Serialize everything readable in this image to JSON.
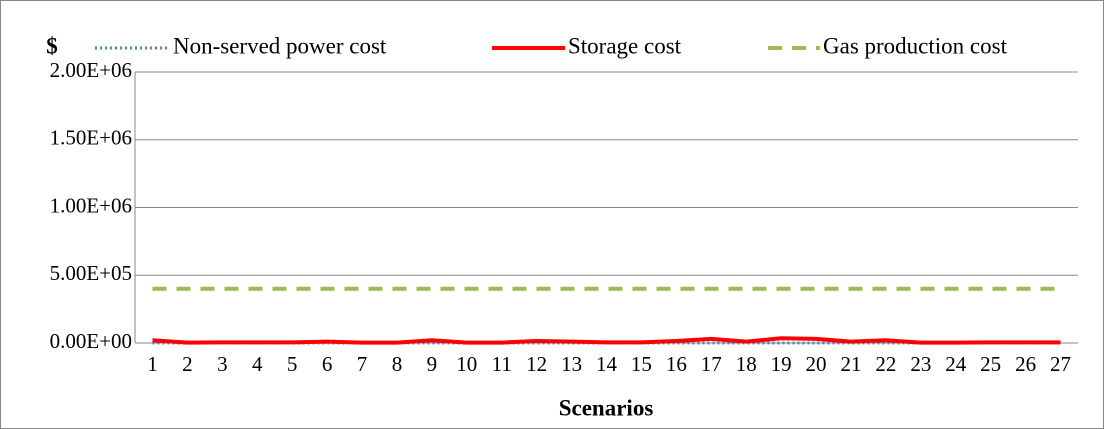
{
  "chart_data": {
    "type": "line",
    "y_label": "$",
    "x_label": "Scenarios",
    "categories": [
      "1",
      "2",
      "3",
      "4",
      "5",
      "6",
      "7",
      "8",
      "9",
      "10",
      "11",
      "12",
      "13",
      "14",
      "15",
      "16",
      "17",
      "18",
      "19",
      "20",
      "21",
      "22",
      "23",
      "24",
      "25",
      "26",
      "27"
    ],
    "series": [
      {
        "name": "Non-served power cost",
        "color": "#4f81bd",
        "style": "dotted",
        "values": [
          0,
          0,
          0,
          0,
          0,
          0,
          0,
          0,
          0,
          0,
          0,
          0,
          0,
          0,
          0,
          0,
          0,
          0,
          0,
          0,
          0,
          0,
          0,
          0,
          0,
          0,
          0
        ]
      },
      {
        "name": "Storage cost",
        "color": "#ff0000",
        "style": "solid",
        "values": [
          20000,
          3000,
          5000,
          5000,
          5000,
          10000,
          3000,
          3000,
          20000,
          3000,
          3000,
          15000,
          10000,
          5000,
          5000,
          15000,
          30000,
          10000,
          35000,
          30000,
          10000,
          20000,
          3000,
          3000,
          5000,
          5000,
          5000
        ]
      },
      {
        "name": "Gas production cost",
        "color": "#9bbb59",
        "style": "dashed",
        "values": [
          400000,
          400000,
          400000,
          400000,
          400000,
          400000,
          400000,
          400000,
          400000,
          400000,
          400000,
          400000,
          400000,
          400000,
          400000,
          400000,
          400000,
          400000,
          400000,
          400000,
          400000,
          400000,
          400000,
          400000,
          400000,
          400000,
          400000
        ]
      }
    ],
    "ylim": [
      0,
      2000000
    ],
    "yticks": [
      {
        "value": 0,
        "label": "0.00E+00"
      },
      {
        "value": 500000,
        "label": "5.00E+05"
      },
      {
        "value": 1000000,
        "label": "1.00E+06"
      },
      {
        "value": 1500000,
        "label": "1.50E+06"
      },
      {
        "value": 2000000,
        "label": "2.00E+06"
      }
    ],
    "grid": true
  }
}
